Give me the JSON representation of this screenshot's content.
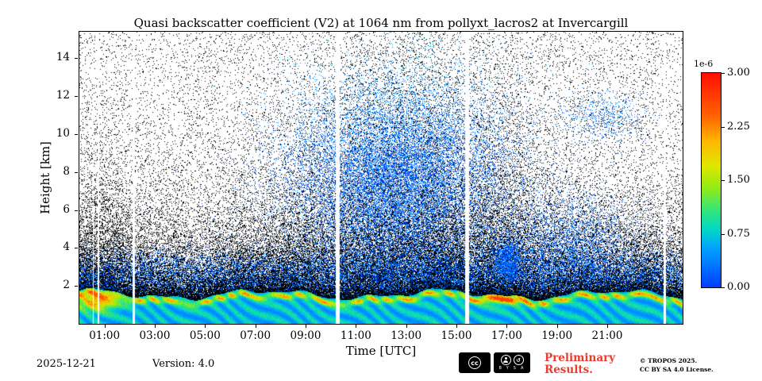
{
  "chart_data": {
    "type": "heatmap",
    "title": "Quasi backscatter coefficient (V2) at 1064 nm from pollyxt_lacros2 at Invercargill",
    "xlabel": "Time [UTC]",
    "ylabel": "Height [km]",
    "x_range_hours": [
      0,
      24
    ],
    "y_range_km": [
      0,
      15.4
    ],
    "x_tick_hours": [
      1,
      3,
      5,
      7,
      9,
      11,
      13,
      15,
      17,
      19,
      21
    ],
    "x_tick_labels": [
      "01:00",
      "03:00",
      "05:00",
      "07:00",
      "09:00",
      "11:00",
      "13:00",
      "15:00",
      "17:00",
      "19:00",
      "21:00"
    ],
    "y_tick_values": [
      2,
      4,
      6,
      8,
      10,
      12,
      14
    ],
    "y_tick_labels": [
      "2",
      "4",
      "6",
      "8",
      "10",
      "12",
      "14"
    ],
    "colorbar": {
      "exponent_label": "1e-6",
      "range": [
        0,
        3
      ],
      "tick_values": [
        0,
        0.75,
        1.5,
        2.25,
        3
      ],
      "tick_labels": [
        "0.00",
        "0.75",
        "1.50",
        "2.25",
        "3.00"
      ]
    },
    "colormap_stops": [
      [
        0.0,
        [
          0,
          60,
          255
        ]
      ],
      [
        0.18,
        [
          0,
          160,
          255
        ]
      ],
      [
        0.27,
        [
          0,
          215,
          200
        ]
      ],
      [
        0.36,
        [
          50,
          230,
          120
        ]
      ],
      [
        0.47,
        [
          150,
          235,
          20
        ]
      ],
      [
        0.57,
        [
          225,
          230,
          0
        ]
      ],
      [
        0.68,
        [
          255,
          185,
          0
        ]
      ],
      [
        0.8,
        [
          255,
          100,
          0
        ]
      ],
      [
        1.0,
        [
          255,
          15,
          0
        ]
      ]
    ],
    "data_gaps_utc": [
      {
        "t": 0.55,
        "w": 0.05
      },
      {
        "t": 0.75,
        "w": 0.05
      },
      {
        "t": 2.15,
        "w": 0.1
      },
      {
        "t": 10.28,
        "w": 0.14
      },
      {
        "t": 15.43,
        "w": 0.14
      },
      {
        "t": 23.28,
        "w": 0.1
      }
    ],
    "features": {
      "boundary_layer": {
        "top_km_base": 1.55,
        "yellow_patches_utc": [
          0.7,
          16.9
        ],
        "value_range_1e6": [
          0.3,
          2.5
        ],
        "description": "continuous near-surface aerosol layer up to ~1.5-1.9 km, cyan-green with yellow patches near 00:00-01:30 and ~17:00"
      },
      "elevated_plume": {
        "center_utc": 12.7,
        "sigma_h": 3.4,
        "center_km": 7.5,
        "sigma_km": 4.2,
        "peak_density": 0.5,
        "description": "blue cloud/aerosol speckle from ~09:00-17:00 reaching 14 km"
      },
      "low_blue_layer": {
        "center_km": 2.5,
        "sigma_km": 1.1,
        "peak_density": 0.32
      },
      "cloud_blob": {
        "center_utc": 17.05,
        "center_km": 3.4,
        "peak_density": 0.75
      },
      "evening_layer": {
        "center_utc": 19.6,
        "center_km": 4.2,
        "peak_density": 0.28
      },
      "cirrus_patch": {
        "center_utc": 20.9,
        "center_km": 11.0,
        "peak_density": 0.22
      },
      "noise": {
        "floor": 0.055,
        "base_scale_km": 1.9,
        "midday_boost": 1.9,
        "midday_center": 13
      }
    }
  },
  "footer": {
    "date": "2025-12-21",
    "version": "Version: 4.0",
    "preliminary_line1": "Preliminary",
    "preliminary_line2": "Results.",
    "preliminary_color": "#ea3b30",
    "copyright_line1": "© TROPOS 2025.",
    "copyright_line2": "CC BY SA 4.0 License.",
    "cc_badge": {
      "cc_text": "cc",
      "label_by": "BY",
      "label_sa": "SA",
      "sa_symbol": "↺"
    }
  }
}
